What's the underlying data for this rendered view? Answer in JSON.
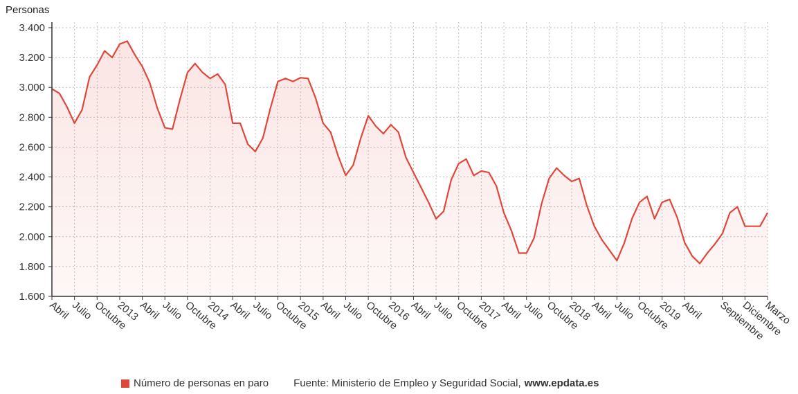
{
  "y_axis_label": "Personas",
  "legend": {
    "series_label": "Número de personas en paro",
    "color": "#e0473a"
  },
  "source": {
    "prefix": "Fuente: Ministerio de Empleo y Seguridad Social,",
    "site": "www.epdata.es"
  },
  "chart_data": {
    "type": "area",
    "title": "",
    "ylabel": "Personas",
    "ylim": [
      1600,
      3400
    ],
    "yticks": [
      1600,
      1800,
      2000,
      2200,
      2400,
      2600,
      2800,
      3000,
      3200,
      3400
    ],
    "ytick_labels": [
      "1.600",
      "1.800",
      "2.000",
      "2.200",
      "2.400",
      "2.600",
      "2.800",
      "3.000",
      "3.200",
      "3.400"
    ],
    "grid": true,
    "xtick_labels": [
      {
        "label": "Abril",
        "index": 0
      },
      {
        "label": "Julio",
        "index": 3
      },
      {
        "label": "Octubre",
        "index": 6
      },
      {
        "label": "2013",
        "index": 9
      },
      {
        "label": "Abril",
        "index": 12
      },
      {
        "label": "Julio",
        "index": 15
      },
      {
        "label": "Octubre",
        "index": 18
      },
      {
        "label": "2014",
        "index": 21
      },
      {
        "label": "Abril",
        "index": 24
      },
      {
        "label": "Julio",
        "index": 27
      },
      {
        "label": "Octubre",
        "index": 30
      },
      {
        "label": "2015",
        "index": 33
      },
      {
        "label": "Abril",
        "index": 36
      },
      {
        "label": "Julio",
        "index": 39
      },
      {
        "label": "Octubre",
        "index": 42
      },
      {
        "label": "2016",
        "index": 45
      },
      {
        "label": "Abril",
        "index": 48
      },
      {
        "label": "Julio",
        "index": 51
      },
      {
        "label": "Octubre",
        "index": 54
      },
      {
        "label": "2017",
        "index": 57
      },
      {
        "label": "Abril",
        "index": 60
      },
      {
        "label": "Julio",
        "index": 63
      },
      {
        "label": "Octubre",
        "index": 66
      },
      {
        "label": "2018",
        "index": 69
      },
      {
        "label": "Abril",
        "index": 72
      },
      {
        "label": "Julio",
        "index": 75
      },
      {
        "label": "Octubre",
        "index": 78
      },
      {
        "label": "2019",
        "index": 81
      },
      {
        "label": "Abril",
        "index": 84
      },
      {
        "label": "Septiembre",
        "index": 89
      },
      {
        "label": "Diciembre",
        "index": 92
      },
      {
        "label": "Marzo",
        "index": 95
      }
    ],
    "series": [
      {
        "name": "Número de personas en paro",
        "color": "#e0473a",
        "values": [
          2990,
          2960,
          2870,
          2760,
          2850,
          3070,
          3150,
          3245,
          3200,
          3290,
          3310,
          3220,
          3140,
          3030,
          2860,
          2730,
          2720,
          2920,
          3100,
          3160,
          3100,
          3060,
          3090,
          3020,
          2760,
          2760,
          2620,
          2570,
          2660,
          2860,
          3040,
          3060,
          3040,
          3065,
          3060,
          2930,
          2760,
          2700,
          2540,
          2410,
          2480,
          2660,
          2810,
          2740,
          2690,
          2750,
          2700,
          2530,
          2430,
          2330,
          2230,
          2120,
          2170,
          2380,
          2490,
          2520,
          2410,
          2440,
          2430,
          2340,
          2160,
          2040,
          1890,
          1890,
          1990,
          2220,
          2390,
          2460,
          2410,
          2370,
          2390,
          2210,
          2070,
          1980,
          1910,
          1840,
          1960,
          2120,
          2230,
          2270,
          2120,
          2230,
          2250,
          2130,
          1960,
          1870,
          1820,
          1890,
          1950,
          2020,
          2160,
          2200,
          2070,
          2070,
          2070,
          2160
        ]
      }
    ]
  }
}
